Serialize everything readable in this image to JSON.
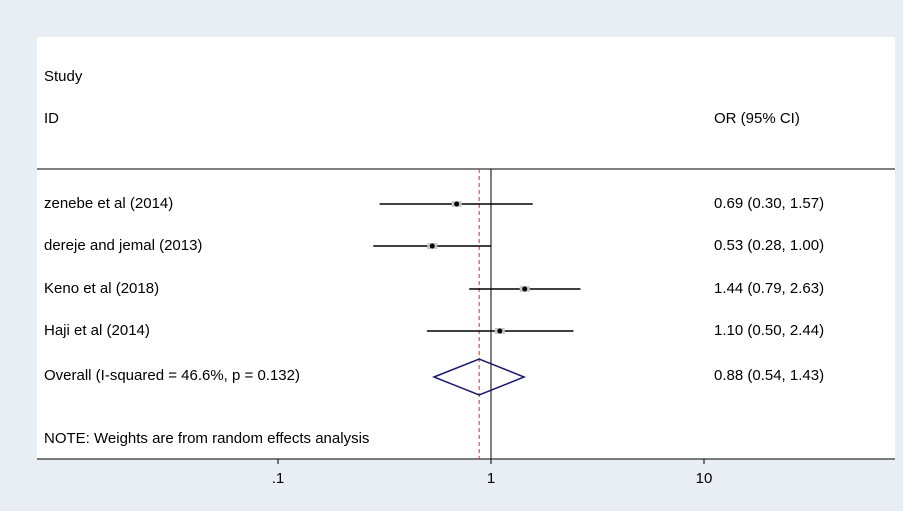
{
  "header": {
    "line1": "Study",
    "line2": "ID",
    "effect_col": "OR (95% CI)"
  },
  "footnote": "NOTE: Weights are from random effects analysis",
  "chart_data": {
    "type": "forest",
    "x_scale": "log",
    "null_line": 1,
    "pooled_line": 0.88,
    "x_ticks": [
      ".1",
      "1",
      "10"
    ],
    "x_tick_values": [
      0.1,
      1,
      10
    ],
    "studies": [
      {
        "label": "zenebe et al (2014)",
        "or": 0.69,
        "lo": 0.3,
        "hi": 1.57,
        "text": "0.69 (0.30, 1.57)"
      },
      {
        "label": "dereje and jemal (2013)",
        "or": 0.53,
        "lo": 0.28,
        "hi": 1.0,
        "text": "0.53 (0.28, 1.00)"
      },
      {
        "label": "Keno et al  (2018)",
        "or": 1.44,
        "lo": 0.79,
        "hi": 2.63,
        "text": "1.44 (0.79, 2.63)"
      },
      {
        "label": "Haji et al (2014)",
        "or": 1.1,
        "lo": 0.5,
        "hi": 2.44,
        "text": "1.10 (0.50, 2.44)"
      }
    ],
    "overall": {
      "label": "Overall  (I-squared = 46.6%, p = 0.132)",
      "or": 0.88,
      "lo": 0.54,
      "hi": 1.43,
      "text": "0.88 (0.54, 1.43)"
    },
    "colors": {
      "diamond": "#1a1a6e",
      "pooled_line": "#c0392b",
      "ci_line": "#000000"
    }
  }
}
